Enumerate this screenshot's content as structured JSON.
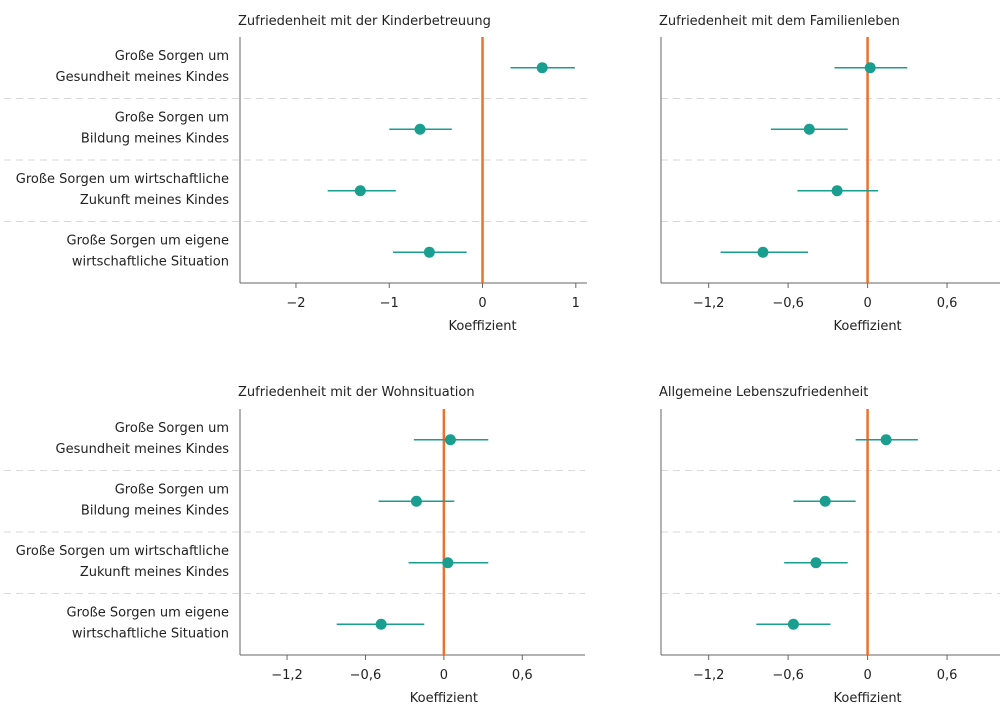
{
  "colors": {
    "point": "#1a9e8f",
    "zero_line": "#e8732a",
    "axis": "#666666",
    "separator": "#d9d9d9",
    "text": "#222222"
  },
  "chart_data": [
    {
      "type": "scatter",
      "title": "Zufriedenheit mit der Kinderbetreuung",
      "xlabel": "Koeffizient",
      "xlim": [
        -2.6,
        1.12
      ],
      "xticks": [
        -2,
        -1,
        0,
        1
      ],
      "xtick_labels": [
        "−2",
        "−1",
        "0",
        "1"
      ],
      "reference_line": 0,
      "categories": [
        [
          "Große Sorgen um",
          "Gesundheit meines Kindes"
        ],
        [
          "Große Sorgen um",
          "Bildung meines Kindes"
        ],
        [
          "Große Sorgen um wirtschaftliche",
          "Zukunft meines Kindes"
        ],
        [
          "Große Sorgen um eigene",
          "wirtschaftliche Situation"
        ]
      ],
      "points": [
        {
          "estimate": 0.64,
          "ci": [
            0.3,
            0.99
          ]
        },
        {
          "estimate": -0.67,
          "ci": [
            -1.0,
            -0.33
          ]
        },
        {
          "estimate": -1.31,
          "ci": [
            -1.66,
            -0.93
          ]
        },
        {
          "estimate": -0.57,
          "ci": [
            -0.96,
            -0.17
          ]
        }
      ]
    },
    {
      "type": "scatter",
      "title": "Zufriedenheit mit dem Familienleben",
      "xlabel": "Koeffizient",
      "xlim": [
        -1.56,
        1.0
      ],
      "xticks": [
        -1.2,
        -0.6,
        0,
        0.6
      ],
      "xtick_labels": [
        "−1,2",
        "−0,6",
        "0",
        "0,6"
      ],
      "reference_line": 0,
      "categories": [],
      "points": [
        {
          "estimate": 0.02,
          "ci": [
            -0.25,
            0.3
          ]
        },
        {
          "estimate": -0.44,
          "ci": [
            -0.73,
            -0.15
          ]
        },
        {
          "estimate": -0.23,
          "ci": [
            -0.53,
            0.08
          ]
        },
        {
          "estimate": -0.79,
          "ci": [
            -1.11,
            -0.45
          ]
        }
      ]
    },
    {
      "type": "scatter",
      "title": "Zufriedenheit mit der Wohnsituation",
      "xlabel": "Koeffizient",
      "xlim": [
        -1.56,
        1.08
      ],
      "xticks": [
        -1.2,
        -0.6,
        0,
        0.6
      ],
      "xtick_labels": [
        "−1,2",
        "−0,6",
        "0",
        "0,6"
      ],
      "reference_line": 0,
      "categories": [
        [
          "Große Sorgen um",
          "Gesundheit meines Kindes"
        ],
        [
          "Große Sorgen um",
          "Bildung meines Kindes"
        ],
        [
          "Große Sorgen um wirtschaftliche",
          "Zukunft meines Kindes"
        ],
        [
          "Große Sorgen um eigene",
          "wirtschaftliche Situation"
        ]
      ],
      "points": [
        {
          "estimate": 0.05,
          "ci": [
            -0.23,
            0.34
          ]
        },
        {
          "estimate": -0.21,
          "ci": [
            -0.5,
            0.08
          ]
        },
        {
          "estimate": 0.03,
          "ci": [
            -0.27,
            0.34
          ]
        },
        {
          "estimate": -0.48,
          "ci": [
            -0.82,
            -0.15
          ]
        }
      ]
    },
    {
      "type": "scatter",
      "title": "Allgemeine Lebenszufriedenheit",
      "xlabel": "Koeffizient",
      "xlim": [
        -1.56,
        1.0
      ],
      "xticks": [
        -1.2,
        -0.6,
        0,
        0.6
      ],
      "xtick_labels": [
        "−1,2",
        "−0,6",
        "0",
        "0,6"
      ],
      "reference_line": 0,
      "categories": [],
      "points": [
        {
          "estimate": 0.14,
          "ci": [
            -0.09,
            0.38
          ]
        },
        {
          "estimate": -0.32,
          "ci": [
            -0.56,
            -0.09
          ]
        },
        {
          "estimate": -0.39,
          "ci": [
            -0.63,
            -0.15
          ]
        },
        {
          "estimate": -0.56,
          "ci": [
            -0.84,
            -0.28
          ]
        }
      ]
    }
  ]
}
